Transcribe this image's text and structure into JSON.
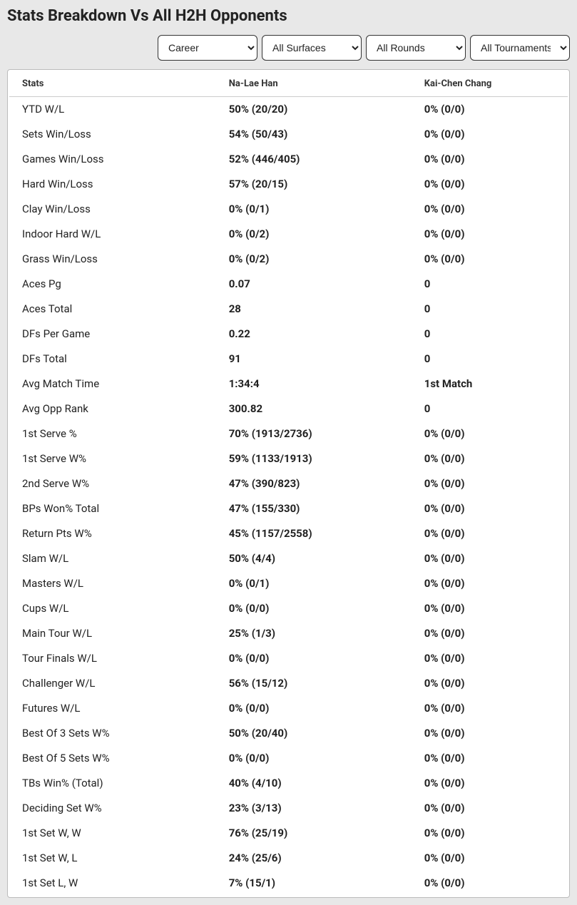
{
  "title": "Stats Breakdown Vs All H2H Opponents",
  "filters": {
    "period": "Career",
    "surface": "All Surfaces",
    "round": "All Rounds",
    "tournament": "All Tournaments"
  },
  "columns": {
    "stats": "Stats",
    "player1": "Na-Lae Han",
    "player2": "Kai-Chen Chang"
  },
  "rows": [
    {
      "label": "YTD W/L",
      "p1": "50% (20/20)",
      "p2": "0% (0/0)"
    },
    {
      "label": "Sets Win/Loss",
      "p1": "54% (50/43)",
      "p2": "0% (0/0)"
    },
    {
      "label": "Games Win/Loss",
      "p1": "52% (446/405)",
      "p2": "0% (0/0)"
    },
    {
      "label": "Hard Win/Loss",
      "p1": "57% (20/15)",
      "p2": "0% (0/0)"
    },
    {
      "label": "Clay Win/Loss",
      "p1": "0% (0/1)",
      "p2": "0% (0/0)"
    },
    {
      "label": "Indoor Hard W/L",
      "p1": "0% (0/2)",
      "p2": "0% (0/0)"
    },
    {
      "label": "Grass Win/Loss",
      "p1": "0% (0/2)",
      "p2": "0% (0/0)"
    },
    {
      "label": "Aces Pg",
      "p1": "0.07",
      "p2": "0"
    },
    {
      "label": "Aces Total",
      "p1": "28",
      "p2": "0"
    },
    {
      "label": "DFs Per Game",
      "p1": "0.22",
      "p2": "0"
    },
    {
      "label": "DFs Total",
      "p1": "91",
      "p2": "0"
    },
    {
      "label": "Avg Match Time",
      "p1": "1:34:4",
      "p2": "1st Match"
    },
    {
      "label": "Avg Opp Rank",
      "p1": "300.82",
      "p2": "0"
    },
    {
      "label": "1st Serve %",
      "p1": "70% (1913/2736)",
      "p2": "0% (0/0)"
    },
    {
      "label": "1st Serve W%",
      "p1": "59% (1133/1913)",
      "p2": "0% (0/0)"
    },
    {
      "label": "2nd Serve W%",
      "p1": "47% (390/823)",
      "p2": "0% (0/0)"
    },
    {
      "label": "BPs Won% Total",
      "p1": "47% (155/330)",
      "p2": "0% (0/0)"
    },
    {
      "label": "Return Pts W%",
      "p1": "45% (1157/2558)",
      "p2": "0% (0/0)"
    },
    {
      "label": "Slam W/L",
      "p1": "50% (4/4)",
      "p2": "0% (0/0)"
    },
    {
      "label": "Masters W/L",
      "p1": "0% (0/1)",
      "p2": "0% (0/0)"
    },
    {
      "label": "Cups W/L",
      "p1": "0% (0/0)",
      "p2": "0% (0/0)"
    },
    {
      "label": "Main Tour W/L",
      "p1": "25% (1/3)",
      "p2": "0% (0/0)"
    },
    {
      "label": "Tour Finals W/L",
      "p1": "0% (0/0)",
      "p2": "0% (0/0)"
    },
    {
      "label": "Challenger W/L",
      "p1": "56% (15/12)",
      "p2": "0% (0/0)"
    },
    {
      "label": "Futures W/L",
      "p1": "0% (0/0)",
      "p2": "0% (0/0)"
    },
    {
      "label": "Best Of 3 Sets W%",
      "p1": "50% (20/40)",
      "p2": "0% (0/0)"
    },
    {
      "label": "Best Of 5 Sets W%",
      "p1": "0% (0/0)",
      "p2": "0% (0/0)"
    },
    {
      "label": "TBs Win% (Total)",
      "p1": "40% (4/10)",
      "p2": "0% (0/0)"
    },
    {
      "label": "Deciding Set W%",
      "p1": "23% (3/13)",
      "p2": "0% (0/0)"
    },
    {
      "label": "1st Set W, W",
      "p1": "76% (25/19)",
      "p2": "0% (0/0)"
    },
    {
      "label": "1st Set W, L",
      "p1": "24% (25/6)",
      "p2": "0% (0/0)"
    },
    {
      "label": "1st Set L, W",
      "p1": "7% (15/1)",
      "p2": "0% (0/0)"
    }
  ],
  "colors": {
    "page_bg": "#e8e8e8",
    "card_bg": "#ffffff",
    "text": "#222222",
    "border": "#bbbbbb",
    "header_border": "#cccccc",
    "select_border": "#333333"
  }
}
